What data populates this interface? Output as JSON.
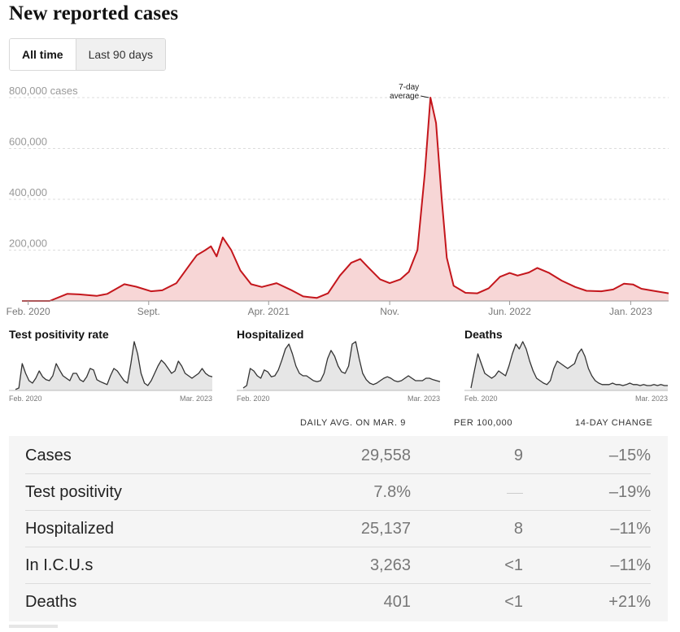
{
  "title": "New reported cases",
  "tabs": [
    {
      "label": "All time",
      "active": true
    },
    {
      "label": "Last 90 days",
      "active": false
    }
  ],
  "chart_data": [
    {
      "type": "area",
      "title": "",
      "ylabel": "",
      "y_unit_label": "cases",
      "ylim": [
        0,
        800000
      ],
      "yticks": [
        {
          "value": 200000,
          "label": "200,000"
        },
        {
          "value": 400000,
          "label": "400,000"
        },
        {
          "value": 600000,
          "label": "600,000"
        },
        {
          "value": 800000,
          "label": "800,000"
        }
      ],
      "xlim": [
        "2020-01-21",
        "2023-03-09"
      ],
      "xticks": [
        {
          "date": "2020-02-01",
          "label": "Feb. 2020"
        },
        {
          "date": "2020-09-01",
          "label": "Sept."
        },
        {
          "date": "2021-04-01",
          "label": "Apr. 2021"
        },
        {
          "date": "2021-11-01",
          "label": "Nov."
        },
        {
          "date": "2022-06-01",
          "label": "Jun. 2022"
        },
        {
          "date": "2023-01-01",
          "label": "Jan. 2023"
        }
      ],
      "annotation": {
        "line1": "7-day",
        "line2": "average"
      },
      "grid": true,
      "series": [
        {
          "name": "",
          "color": "#c4161c",
          "fill": "#f7d6d6",
          "points": [
            [
              "2020-01-21",
              0
            ],
            [
              "2020-03-10",
              0
            ],
            [
              "2020-04-10",
              28000
            ],
            [
              "2020-05-01",
              26000
            ],
            [
              "2020-06-01",
              20000
            ],
            [
              "2020-06-20",
              28000
            ],
            [
              "2020-07-20",
              66000
            ],
            [
              "2020-08-10",
              56000
            ],
            [
              "2020-09-05",
              38000
            ],
            [
              "2020-09-25",
              42000
            ],
            [
              "2020-10-20",
              70000
            ],
            [
              "2020-11-15",
              150000
            ],
            [
              "2020-11-25",
              180000
            ],
            [
              "2020-12-10",
              200000
            ],
            [
              "2020-12-20",
              215000
            ],
            [
              "2020-12-30",
              175000
            ],
            [
              "2021-01-10",
              250000
            ],
            [
              "2021-01-25",
              200000
            ],
            [
              "2021-02-10",
              120000
            ],
            [
              "2021-03-01",
              66000
            ],
            [
              "2021-03-20",
              55000
            ],
            [
              "2021-04-15",
              70000
            ],
            [
              "2021-05-10",
              44000
            ],
            [
              "2021-06-01",
              18000
            ],
            [
              "2021-06-25",
              12000
            ],
            [
              "2021-07-15",
              30000
            ],
            [
              "2021-08-05",
              100000
            ],
            [
              "2021-08-25",
              150000
            ],
            [
              "2021-09-10",
              165000
            ],
            [
              "2021-09-25",
              130000
            ],
            [
              "2021-10-15",
              85000
            ],
            [
              "2021-11-01",
              70000
            ],
            [
              "2021-11-20",
              85000
            ],
            [
              "2021-12-05",
              115000
            ],
            [
              "2021-12-20",
              200000
            ],
            [
              "2022-01-02",
              500000
            ],
            [
              "2022-01-12",
              800000
            ],
            [
              "2022-01-22",
              700000
            ],
            [
              "2022-02-01",
              400000
            ],
            [
              "2022-02-10",
              170000
            ],
            [
              "2022-02-22",
              60000
            ],
            [
              "2022-03-15",
              32000
            ],
            [
              "2022-04-05",
              30000
            ],
            [
              "2022-04-25",
              50000
            ],
            [
              "2022-05-15",
              95000
            ],
            [
              "2022-06-01",
              110000
            ],
            [
              "2022-06-15",
              100000
            ],
            [
              "2022-07-05",
              112000
            ],
            [
              "2022-07-20",
              130000
            ],
            [
              "2022-08-10",
              110000
            ],
            [
              "2022-09-01",
              80000
            ],
            [
              "2022-09-25",
              55000
            ],
            [
              "2022-10-15",
              40000
            ],
            [
              "2022-11-10",
              38000
            ],
            [
              "2022-12-01",
              45000
            ],
            [
              "2022-12-20",
              68000
            ],
            [
              "2023-01-05",
              65000
            ],
            [
              "2023-01-20",
              48000
            ],
            [
              "2023-02-10",
              40000
            ],
            [
              "2023-03-09",
              30000
            ]
          ]
        }
      ]
    },
    {
      "type": "area",
      "title": "Test positivity rate",
      "x_start_label": "Feb. 2020",
      "x_end_label": "Mar. 2023",
      "series": [
        {
          "name": "",
          "color": "#333333",
          "fill": "#e6e6e6",
          "values": [
            0.02,
            0.05,
            0.55,
            0.35,
            0.2,
            0.15,
            0.25,
            0.4,
            0.28,
            0.22,
            0.2,
            0.3,
            0.55,
            0.42,
            0.3,
            0.25,
            0.2,
            0.35,
            0.35,
            0.22,
            0.18,
            0.28,
            0.45,
            0.42,
            0.22,
            0.18,
            0.15,
            0.12,
            0.3,
            0.45,
            0.4,
            0.3,
            0.2,
            0.15,
            0.55,
            1.0,
            0.75,
            0.35,
            0.15,
            0.1,
            0.2,
            0.35,
            0.5,
            0.62,
            0.55,
            0.45,
            0.35,
            0.4,
            0.6,
            0.5,
            0.35,
            0.3,
            0.25,
            0.3,
            0.35,
            0.45,
            0.35,
            0.3,
            0.28
          ]
        }
      ]
    },
    {
      "type": "area",
      "title": "Hospitalized",
      "x_start_label": "Feb. 2020",
      "x_end_label": "Mar. 2023",
      "series": [
        {
          "name": "",
          "color": "#333333",
          "fill": "#e6e6e6",
          "values": [
            0.05,
            0.1,
            0.45,
            0.4,
            0.3,
            0.25,
            0.42,
            0.38,
            0.28,
            0.3,
            0.42,
            0.62,
            0.85,
            0.95,
            0.75,
            0.5,
            0.35,
            0.3,
            0.3,
            0.25,
            0.2,
            0.18,
            0.2,
            0.35,
            0.65,
            0.82,
            0.7,
            0.5,
            0.38,
            0.35,
            0.5,
            0.95,
            1.0,
            0.65,
            0.35,
            0.22,
            0.15,
            0.12,
            0.15,
            0.2,
            0.25,
            0.28,
            0.25,
            0.2,
            0.18,
            0.2,
            0.25,
            0.3,
            0.25,
            0.2,
            0.2,
            0.2,
            0.25,
            0.25,
            0.22,
            0.2,
            0.18
          ]
        }
      ]
    },
    {
      "type": "area",
      "title": "Deaths",
      "x_start_label": "Feb. 2020",
      "x_end_label": "Mar. 2023",
      "series": [
        {
          "name": "",
          "color": "#333333",
          "fill": "#e6e6e6",
          "values": [
            0.05,
            0.4,
            0.75,
            0.55,
            0.35,
            0.3,
            0.25,
            0.3,
            0.4,
            0.35,
            0.3,
            0.5,
            0.75,
            0.95,
            0.85,
            1.0,
            0.85,
            0.6,
            0.4,
            0.25,
            0.2,
            0.15,
            0.12,
            0.2,
            0.45,
            0.6,
            0.55,
            0.5,
            0.45,
            0.5,
            0.55,
            0.75,
            0.85,
            0.7,
            0.45,
            0.3,
            0.2,
            0.15,
            0.12,
            0.12,
            0.12,
            0.15,
            0.12,
            0.12,
            0.1,
            0.12,
            0.15,
            0.12,
            0.12,
            0.1,
            0.12,
            0.1,
            0.1,
            0.12,
            0.1,
            0.12,
            0.1,
            0.1
          ]
        }
      ]
    }
  ],
  "table": {
    "headers": {
      "daily": "Daily avg. on Mar. 9",
      "per100k": "Per 100,000",
      "change": "14-day change"
    },
    "rows": [
      {
        "label": "Cases",
        "daily": "29,558",
        "per100k": "9",
        "change": "–15%"
      },
      {
        "label": "Test positivity",
        "daily": "7.8%",
        "per100k": "",
        "change": "–19%"
      },
      {
        "label": "Hospitalized",
        "daily": "25,137",
        "per100k": "8",
        "change": "–11%"
      },
      {
        "label": "In I.C.U.s",
        "daily": "3,263",
        "per100k": "<1",
        "change": "–11%"
      },
      {
        "label": "Deaths",
        "daily": "401",
        "per100k": "<1",
        "change": "+21%"
      }
    ]
  }
}
